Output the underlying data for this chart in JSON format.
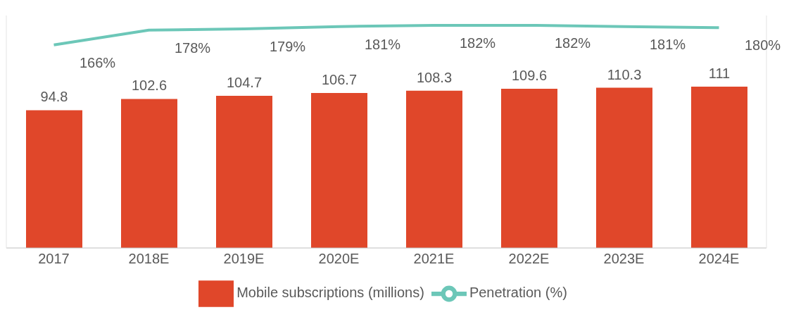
{
  "chart_data": {
    "type": "bar",
    "categories": [
      "2017",
      "2018E",
      "2019E",
      "2020E",
      "2021E",
      "2022E",
      "2023E",
      "2024E"
    ],
    "series": [
      {
        "name": "Mobile subscriptions (millions)",
        "color": "#e0472a",
        "values": [
          94.8,
          102.6,
          104.7,
          106.7,
          108.3,
          109.6,
          110.3,
          111
        ]
      },
      {
        "name": "Penetration (%)",
        "type": "line",
        "axis": "y2",
        "color": "#6cc7b8",
        "values": [
          166,
          178,
          179,
          181,
          182,
          182,
          181,
          180
        ],
        "value_labels": [
          "166%",
          "178%",
          "179%",
          "181%",
          "182%",
          "182%",
          "181%",
          "180%"
        ]
      }
    ],
    "ylim": [
      0,
      160
    ],
    "y2lim": [
      0,
      190
    ],
    "data_labels": true,
    "legend": "bottom",
    "grid": false,
    "marker": "none",
    "tick_labels": "x"
  }
}
